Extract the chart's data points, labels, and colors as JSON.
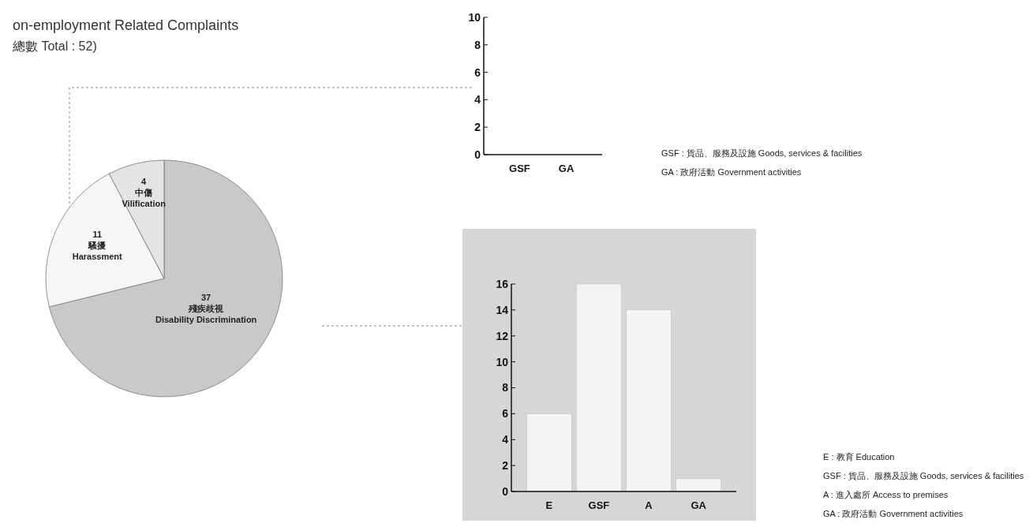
{
  "chart_data": [
    {
      "type": "pie",
      "title": "on-employment Related Complaints",
      "subtitle": "總數 Total : 52)",
      "categories": [
        "殘疾歧視 Disability Discrimination",
        "騷擾 Harassment",
        "中傷 Vilification"
      ],
      "values": [
        37,
        11,
        4
      ],
      "colors": [
        "#c9c9c9",
        "#f6f6f6",
        "#e4e4e4"
      ],
      "data_labels": true
    },
    {
      "type": "bar",
      "categories": [
        "GSF",
        "GA"
      ],
      "values": [
        0,
        0
      ],
      "color": "#f4f4f4",
      "ylim": [
        0,
        10
      ],
      "yticks": [
        0,
        2,
        4,
        6,
        8,
        10
      ],
      "annotations": [
        "GSF : 貨品、服務及設施 Goods, services & facilities",
        "GA : 政府活動 Government activities"
      ]
    },
    {
      "type": "bar",
      "categories": [
        "E",
        "GSF",
        "A",
        "GA"
      ],
      "values": [
        6,
        16,
        14,
        1
      ],
      "color": "#f4f4f4",
      "ylim": [
        0,
        16
      ],
      "yticks": [
        0,
        2,
        4,
        6,
        8,
        10,
        12,
        14,
        16
      ],
      "annotations": [
        "E : 教育 Education",
        "GSF : 貨品、服務及設施 Goods, services & facilities",
        "A : 進入處所 Access to premises",
        "GA : 政府活動 Government activities"
      ]
    }
  ]
}
